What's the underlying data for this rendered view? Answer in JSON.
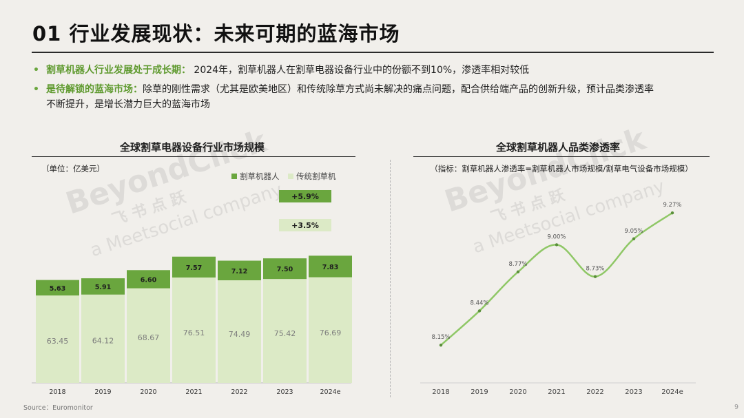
{
  "title": "01 行业发展现状：未来可期的蓝海市场",
  "bullets": {
    "b1_highlight": "割草机器人行业发展处于成长期：",
    "b1_text": "2024年，割草机器人在割草电器设备行业中的份额不到10%，渗透率相对较低",
    "b2_highlight": "是待解锁的蓝海市场：",
    "b2_text": "除草的刚性需求（尤其是欧美地区）和传统除草方式尚未解决的痛点问题，配合供给端产品的创新升级，预计品类渗透率",
    "b2_text_cont": "不断提升，是增长潜力巨大的蓝海市场"
  },
  "watermark": {
    "brand": "BeyondClick",
    "cn": "飞 书 点 跃",
    "en": "a Meetsocial company"
  },
  "colors": {
    "robot": "#6aa63e",
    "traditional": "#dceac6",
    "line": "#8fc766",
    "accent_text": "#5f9a2f"
  },
  "chart_data": [
    {
      "type": "bar",
      "stacked": true,
      "title": "全球割草电器设备行业市场规模",
      "unit_label": "（单位：亿美元）",
      "categories": [
        "2018",
        "2019",
        "2020",
        "2021",
        "2022",
        "2023",
        "2024e"
      ],
      "series": [
        {
          "name": "割草机器人",
          "values": [
            5.63,
            5.91,
            6.6,
            7.57,
            7.12,
            7.5,
            7.83
          ]
        },
        {
          "name": "传统割草机",
          "values": [
            63.45,
            64.12,
            68.67,
            76.51,
            74.49,
            75.42,
            76.69
          ]
        }
      ],
      "annotations": [
        {
          "text": "+5.9%",
          "series": "割草机器人"
        },
        {
          "text": "+3.5%",
          "series": "传统割草机"
        }
      ],
      "legend": "top-right"
    },
    {
      "type": "line",
      "title": "全球割草机器人品类渗透率",
      "note": "（指标：割草机器人渗透率=割草机器人市场规模/割草电气设备市场规模）",
      "x": [
        "2018",
        "2019",
        "2020",
        "2021",
        "2022",
        "2023",
        "2024e"
      ],
      "series": [
        {
          "values": [
            8.15,
            8.44,
            8.77,
            9.0,
            8.73,
            9.05,
            9.27
          ],
          "labels": [
            "8.15%",
            "8.44%",
            "8.77%",
            "9.00%",
            "8.73%",
            "9.05%",
            "9.27%"
          ]
        }
      ],
      "ylim": [
        7.83,
        9.3
      ]
    }
  ],
  "source": "Source：Euromonitor",
  "page_number": "9"
}
